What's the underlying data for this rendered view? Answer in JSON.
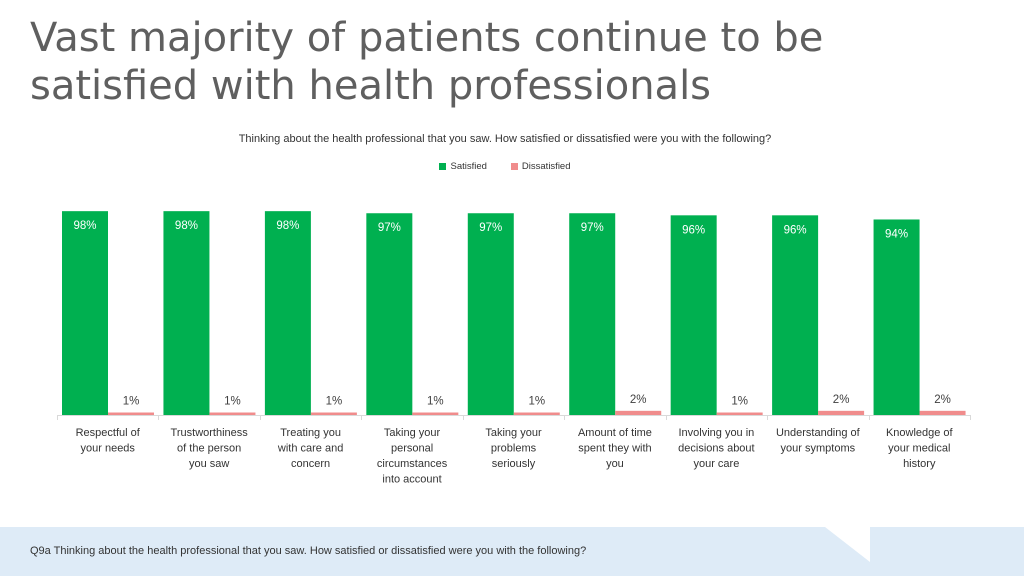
{
  "slide": {
    "title": "Vast majority of patients continue to be satisfied with health professionals",
    "footer": "Q9a Thinking about the health professional that you saw. How satisfied or dissatisfied were you with the following?"
  },
  "colors": {
    "satisfied": "#00b050",
    "dissatisfied": "#f08c8c",
    "footer_bg": "#deebf7",
    "title": "#5f5f5f"
  },
  "chart_data": {
    "type": "bar",
    "title": "Thinking about the health professional that you saw. How satisfied or dissatisfied were you with the following?",
    "categories": [
      "Respectful of your needs",
      "Trustworthiness of the person you saw",
      "Treating you with care and concern",
      "Taking your personal circumstances into account",
      "Taking your problems seriously",
      "Amount of time spent they with you",
      "Involving you in decisions about your care",
      "Understanding of your symptoms",
      "Knowledge of your medical history"
    ],
    "series": [
      {
        "name": "Satisfied",
        "values": [
          98,
          98,
          98,
          97,
          97,
          97,
          96,
          96,
          94
        ],
        "labels": [
          "98%",
          "98%",
          "98%",
          "97%",
          "97%",
          "97%",
          "96%",
          "96%",
          "94%"
        ]
      },
      {
        "name": "Dissatisfied",
        "values": [
          1,
          1,
          1,
          1,
          1,
          2,
          1,
          2,
          2
        ],
        "labels": [
          "1%",
          "1%",
          "1%",
          "1%",
          "1%",
          "2%",
          "1%",
          "2%",
          "2%"
        ]
      }
    ],
    "ylim": [
      0,
      100
    ],
    "legend": "top-center",
    "grid": false
  }
}
